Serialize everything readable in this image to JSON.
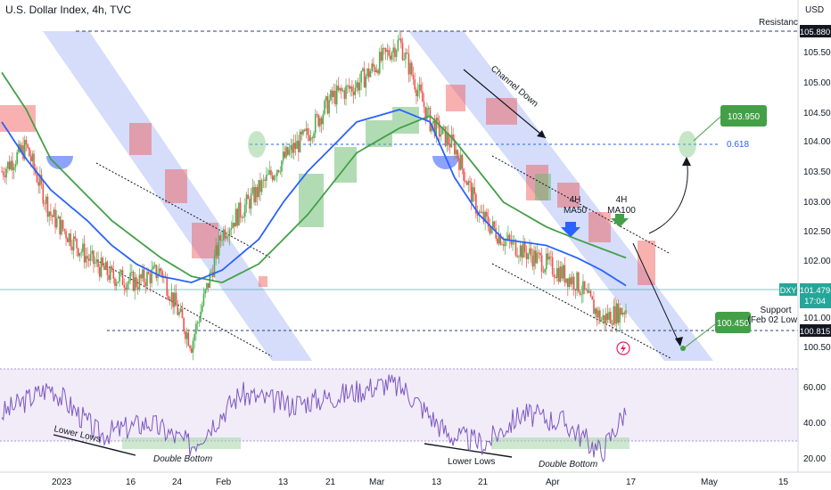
{
  "header": {
    "title": "U.S. Dollar Index, 4h, TVC",
    "currency": "USD"
  },
  "price_axis": {
    "ticks": [
      "105.500",
      "105.000",
      "104.500",
      "104.000",
      "103.500",
      "103.000",
      "102.500",
      "102.000",
      "101.000",
      "100.500"
    ],
    "resistance_value": "105.880",
    "dxy_badge": "DXY",
    "last_price": "101.479",
    "countdown": "17:04",
    "support_value": "100.815"
  },
  "rsi_axis": {
    "ticks": [
      "60.00",
      "40.00",
      "20.00"
    ]
  },
  "time_axis": {
    "ticks": [
      "2023",
      "16",
      "24",
      "Feb",
      "13",
      "21",
      "Mar",
      "13",
      "21",
      "Apr",
      "17",
      "May",
      "15"
    ]
  },
  "annotations": {
    "resistance": "Resistance",
    "support_line1": "Support",
    "support_line2": "(Feb 02 Low)",
    "channel_down": "Channel Down",
    "fib": "0.618",
    "target_high": "103.950",
    "target_low": "100.450",
    "ma50_line1": "4H",
    "ma50_line2": "MA50",
    "ma100_line1": "4H",
    "ma100_line2": "MA100",
    "lower_lows_1": "Lower Lows",
    "double_bottom_1": "Double Bottom",
    "lower_lows_2": "Lower Lows",
    "double_bottom_2": "Double Bottom"
  },
  "colors": {
    "ma50": "#2962ff",
    "ma100": "#43a047",
    "up_candle": "#4caf50",
    "down_candle": "#ef5350",
    "rsi": "#7e57c2",
    "channel": "#c7d2fa",
    "target_box": "#43a047"
  },
  "chart_data": {
    "type": "line",
    "symbol": "DXY",
    "timeframe": "4h",
    "y_range": [
      100.3,
      106.1
    ],
    "x": [
      "2023-01-02",
      "2023-01-06",
      "2023-01-10",
      "2023-01-16",
      "2023-01-20",
      "2023-01-24",
      "2023-01-28",
      "2023-02-02",
      "2023-02-07",
      "2023-02-13",
      "2023-02-17",
      "2023-02-21",
      "2023-02-25",
      "2023-03-01",
      "2023-03-08",
      "2023-03-13",
      "2023-03-17",
      "2023-03-21",
      "2023-03-25",
      "2023-04-01",
      "2023-04-06",
      "2023-04-10",
      "2023-04-14"
    ],
    "series": [
      {
        "values": [
          103.7,
          104.1,
          103.0,
          102.3,
          102.0,
          101.9,
          102.1,
          100.9,
          102.7,
          103.4,
          103.9,
          104.3,
          104.9,
          105.1,
          105.8,
          104.5,
          104.1,
          103.0,
          102.6,
          102.2,
          101.9,
          101.3,
          101.48
        ]
      },
      {
        "name": "4H MA50",
        "values": [
          104.5,
          103.9,
          103.4,
          102.9,
          102.5,
          102.2,
          102.0,
          101.9,
          102.1,
          102.6,
          103.2,
          103.7,
          104.1,
          104.5,
          104.7,
          104.5,
          103.6,
          103.0,
          102.6,
          102.5,
          102.3,
          102.1,
          101.85
        ]
      },
      {
        "name": "4H MA100",
        "values": [
          105.3,
          104.7,
          103.9,
          103.3,
          102.9,
          102.6,
          102.3,
          102.0,
          101.9,
          102.2,
          102.6,
          103.0,
          103.5,
          104.0,
          104.4,
          104.6,
          104.2,
          103.7,
          103.2,
          102.8,
          102.6,
          102.45,
          102.3
        ]
      }
    ],
    "rsi": {
      "x": [
        "2023-01-02",
        "2023-01-10",
        "2023-01-18",
        "2023-01-26",
        "2023-02-02",
        "2023-02-10",
        "2023-02-18",
        "2023-02-26",
        "2023-03-06",
        "2023-03-09",
        "2023-03-16",
        "2023-03-22",
        "2023-03-28",
        "2023-04-04",
        "2023-04-10",
        "2023-04-14"
      ],
      "values": [
        45,
        60,
        33,
        40,
        27,
        56,
        50,
        55,
        62,
        58,
        33,
        28,
        45,
        40,
        23,
        47
      ]
    },
    "levels": {
      "resistance": 105.88,
      "fib_0_618": 103.95,
      "support": 100.815,
      "target_high": 103.95,
      "target_low": 100.45,
      "last": 101.479
    }
  }
}
